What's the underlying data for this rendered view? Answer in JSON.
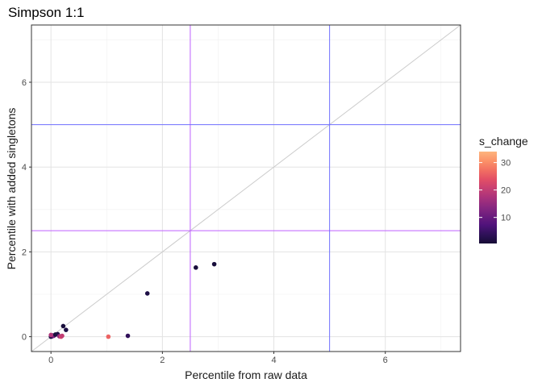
{
  "chart_data": {
    "type": "scatter",
    "title": "Simpson 1:1",
    "xlabel": "Percentile from raw data",
    "ylabel": "Percentile with added singletons",
    "xlim": [
      -0.35,
      7.35
    ],
    "ylim": [
      -0.35,
      7.35
    ],
    "x_ticks": [
      0,
      2,
      4,
      6
    ],
    "y_ticks": [
      0,
      2,
      4,
      6
    ],
    "grid": true,
    "legend": {
      "title": "s_change",
      "position": "right",
      "ticks": [
        10,
        20,
        30
      ],
      "range": [
        0.5,
        34
      ],
      "colormap": "magma"
    },
    "reference_lines": [
      {
        "kind": "identity",
        "color": "#cccccc"
      },
      {
        "kind": "vline",
        "x": 2.5,
        "color": "#bf5fff"
      },
      {
        "kind": "hline",
        "y": 2.5,
        "color": "#bf5fff"
      },
      {
        "kind": "vline",
        "x": 5,
        "color": "#6f6fff"
      },
      {
        "kind": "hline",
        "y": 5,
        "color": "#6f6fff"
      }
    ],
    "points": [
      {
        "x": 0.0,
        "y": 0.0,
        "s_change": 2
      },
      {
        "x": 0.02,
        "y": 0.01,
        "s_change": 3
      },
      {
        "x": 0.03,
        "y": 0.03,
        "s_change": 5
      },
      {
        "x": 0.05,
        "y": 0.02,
        "s_change": 12
      },
      {
        "x": 0.08,
        "y": 0.05,
        "s_change": 1
      },
      {
        "x": 0.0,
        "y": 0.04,
        "s_change": 18
      },
      {
        "x": 0.12,
        "y": 0.06,
        "s_change": 2
      },
      {
        "x": 0.15,
        "y": 0.01,
        "s_change": 15
      },
      {
        "x": 0.18,
        "y": 0.0,
        "s_change": 22
      },
      {
        "x": 0.2,
        "y": 0.02,
        "s_change": 20
      },
      {
        "x": 0.22,
        "y": 0.25,
        "s_change": 1
      },
      {
        "x": 0.27,
        "y": 0.16,
        "s_change": 2
      },
      {
        "x": 1.03,
        "y": 0.0,
        "s_change": 26
      },
      {
        "x": 1.38,
        "y": 0.02,
        "s_change": 4
      },
      {
        "x": 1.73,
        "y": 1.02,
        "s_change": 2
      },
      {
        "x": 2.6,
        "y": 1.63,
        "s_change": 1
      },
      {
        "x": 2.93,
        "y": 1.71,
        "s_change": 1
      }
    ]
  }
}
